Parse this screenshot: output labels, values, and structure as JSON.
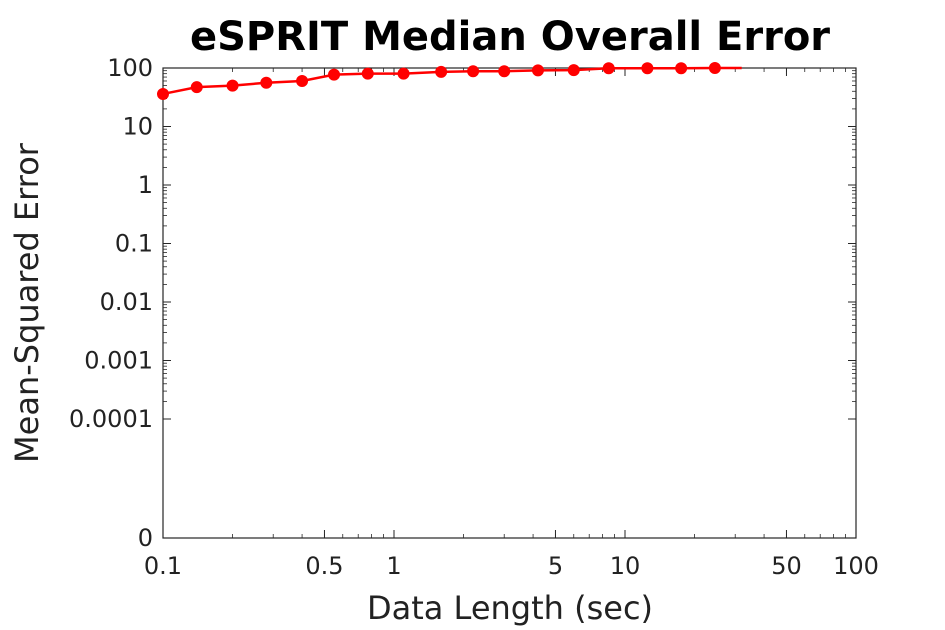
{
  "chart_data": {
    "type": "line",
    "title": "eSPRIT Median Overall Error",
    "xlabel": "Data Length (sec)",
    "ylabel": "Mean-Squared Error",
    "x_scale": "log",
    "y_scale": "log",
    "xlim": [
      0.1,
      100
    ],
    "ylim_labels": [
      "0",
      "0.0001",
      "0.001",
      "0.01",
      "0.1",
      "1",
      "10",
      "100"
    ],
    "x_tick_labels": [
      "0.1",
      "0.5",
      "1",
      "5",
      "10",
      "50",
      "100"
    ],
    "x_tick_values": [
      0.1,
      0.5,
      1,
      5,
      10,
      50,
      100
    ],
    "grid": false,
    "series": [
      {
        "color": "#ff0000",
        "x": [
          0.1,
          0.14,
          0.2,
          0.28,
          0.4,
          0.55,
          0.77,
          1.1,
          1.6,
          2.2,
          3.0,
          4.2,
          6.0,
          8.5,
          12.5,
          17.5,
          24.5,
          32.0
        ],
        "y": [
          36,
          47,
          50,
          56,
          60,
          77,
          80,
          80,
          86,
          88,
          88,
          91,
          92,
          99,
          99,
          99,
          100,
          100
        ],
        "markers": [
          true,
          true,
          true,
          true,
          true,
          true,
          true,
          true,
          true,
          true,
          true,
          true,
          true,
          true,
          true,
          true,
          true,
          false
        ]
      }
    ]
  }
}
